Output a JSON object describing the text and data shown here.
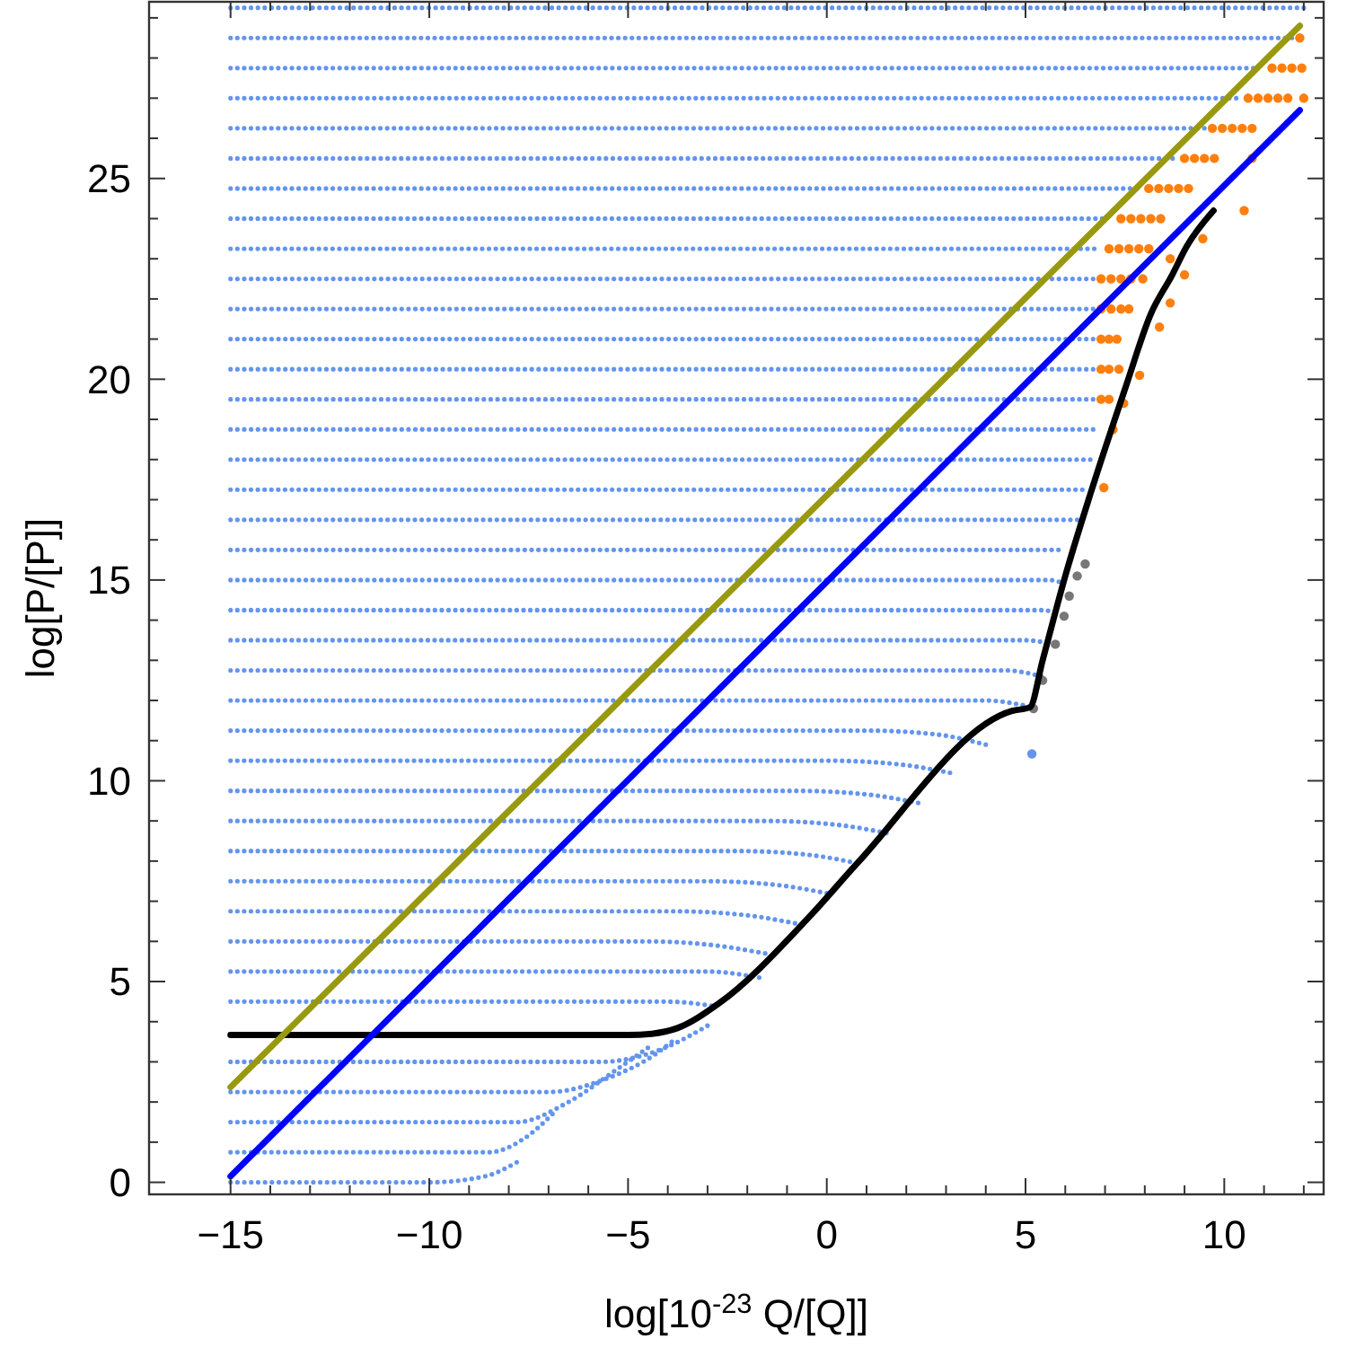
{
  "chart_data": {
    "type": "scatter",
    "xlabel": "log[10$^{-23}$ Q/[Q]]",
    "ylabel": "log[P/[P]]",
    "xlim": [
      -17.05,
      12.5
    ],
    "ylim": [
      -0.3,
      29.4
    ],
    "xticks": [
      -15,
      {
        "value": -14,
        "label": null
      },
      {
        "value": -13,
        "label": null
      },
      {
        "value": -12,
        "label": null
      },
      {
        "value": -11,
        "label": null
      },
      -10,
      {
        "value": -9,
        "label": null
      },
      {
        "value": -8,
        "label": null
      },
      {
        "value": -7,
        "label": null
      },
      {
        "value": -6,
        "label": null
      },
      -5,
      {
        "value": -4,
        "label": null
      },
      {
        "value": -3,
        "label": null
      },
      {
        "value": -2,
        "label": null
      },
      {
        "value": -1,
        "label": null
      },
      0,
      {
        "value": 1,
        "label": null
      },
      {
        "value": 2,
        "label": null
      },
      {
        "value": 3,
        "label": null
      },
      {
        "value": 4,
        "label": null
      },
      5,
      {
        "value": 6,
        "label": null
      },
      {
        "value": 7,
        "label": null
      },
      {
        "value": 8,
        "label": null
      },
      {
        "value": 9,
        "label": null
      },
      10,
      {
        "value": 11,
        "label": null
      },
      {
        "value": 12,
        "label": null
      }
    ],
    "yticks": [
      0,
      {
        "value": 1,
        "label": null
      },
      {
        "value": 2,
        "label": null
      },
      {
        "value": 3,
        "label": null
      },
      {
        "value": 4,
        "label": null
      },
      5,
      {
        "value": 6,
        "label": null
      },
      {
        "value": 7,
        "label": null
      },
      {
        "value": 8,
        "label": null
      },
      {
        "value": 9,
        "label": null
      },
      10,
      {
        "value": 11,
        "label": null
      },
      {
        "value": 12,
        "label": null
      },
      {
        "value": 13,
        "label": null
      },
      {
        "value": 14,
        "label": null
      },
      15,
      {
        "value": 16,
        "label": null
      },
      {
        "value": 17,
        "label": null
      },
      {
        "value": 18,
        "label": null
      },
      {
        "value": 19,
        "label": null
      },
      20,
      {
        "value": 21,
        "label": null
      },
      {
        "value": 22,
        "label": null
      },
      {
        "value": 23,
        "label": null
      },
      {
        "value": 24,
        "label": null
      },
      25,
      {
        "value": 26,
        "label": null
      },
      {
        "value": 27,
        "label": null
      },
      {
        "value": 28,
        "label": null
      },
      {
        "value": 29,
        "label": null
      }
    ],
    "series": [
      {
        "type": "line",
        "color": "#6495ed",
        "line_style": "dotted",
        "x": [
          -15,
          -10,
          -8.6,
          -7.8
        ],
        "values": [
          0,
          0,
          0.15,
          0.5
        ]
      },
      {
        "type": "line",
        "color": "#6495ed",
        "line_style": "dotted",
        "x": [
          -15,
          -8.5,
          -7.6,
          -6.9
        ],
        "values": [
          0.75,
          0.75,
          1.1,
          1.7
        ]
      },
      {
        "type": "line",
        "color": "#6495ed",
        "line_style": "dotted",
        "x": [
          -15,
          -7.8,
          -6.5,
          -5.3,
          -4.5
        ],
        "values": [
          1.5,
          1.5,
          2.0,
          2.8,
          3.35
        ]
      },
      {
        "type": "line",
        "color": "#6495ed",
        "line_style": "dotted",
        "x": [
          -15,
          -7.0,
          -5.5,
          -4.3,
          -3.9
        ],
        "values": [
          2.25,
          2.25,
          2.6,
          3.2,
          3.5
        ]
      },
      {
        "type": "line",
        "color": "#6495ed",
        "line_style": "dotted",
        "x": [
          -15,
          -5.7,
          -4.2,
          -3.0
        ],
        "values": [
          3,
          3,
          3.3,
          3.9
        ]
      },
      {
        "type": "line",
        "color": "#6495ed",
        "line_style": "dotted",
        "x": [
          -15,
          -4,
          -2.9
        ],
        "values": [
          4.5,
          4.5,
          4.4
        ]
      },
      {
        "type": "line",
        "color": "#6495ed",
        "line_style": "dotted",
        "x": [
          -15,
          -3,
          -1.7
        ],
        "values": [
          5.25,
          5.25,
          5.1
        ]
      },
      {
        "type": "line",
        "color": "#6495ed",
        "line_style": "dotted",
        "x": [
          -15,
          -4.5,
          -2.8,
          -1.55
        ],
        "values": [
          6,
          6,
          5.9,
          5.7
        ]
      },
      {
        "type": "line",
        "color": "#6495ed",
        "line_style": "dotted",
        "x": [
          -15,
          -3.8,
          -2.0,
          -0.8
        ],
        "values": [
          6.75,
          6.75,
          6.65,
          6.45
        ]
      },
      {
        "type": "line",
        "color": "#6495ed",
        "line_style": "dotted",
        "x": [
          -15,
          -3.0,
          -1.2,
          0
        ],
        "values": [
          7.5,
          7.5,
          7.4,
          7.2
        ]
      },
      {
        "type": "line",
        "color": "#6495ed",
        "line_style": "dotted",
        "x": [
          -15,
          -2.2,
          -0.4,
          0.75
        ],
        "values": [
          8.25,
          8.25,
          8.15,
          7.95
        ]
      },
      {
        "type": "line",
        "color": "#6495ed",
        "line_style": "dotted",
        "x": [
          -15,
          -1.5,
          0.3,
          1.5
        ],
        "values": [
          9,
          9,
          8.9,
          8.7
        ]
      },
      {
        "type": "line",
        "color": "#6495ed",
        "line_style": "dotted",
        "x": [
          -15,
          -0.7,
          1.1,
          2.3
        ],
        "values": [
          9.75,
          9.75,
          9.65,
          9.45
        ]
      },
      {
        "type": "line",
        "color": "#6495ed",
        "line_style": "dotted",
        "x": [
          -15,
          0.1,
          1.9,
          3.1
        ],
        "values": [
          10.5,
          10.5,
          10.4,
          10.2
        ]
      },
      {
        "type": "line",
        "color": "#6495ed",
        "line_style": "dotted",
        "x": [
          -15,
          1.0,
          2.8,
          4.0
        ],
        "values": [
          11.25,
          11.25,
          11.15,
          10.9
        ]
      },
      {
        "type": "line",
        "color": "#6495ed",
        "line_style": "dotted",
        "x": [
          -15,
          4.0,
          5.1
        ],
        "values": [
          12,
          12,
          11.85
        ]
      },
      {
        "type": "line",
        "color": "#6495ed",
        "line_style": "dotted",
        "x": [
          -15,
          4.5,
          5.4
        ],
        "values": [
          12.75,
          12.75,
          12.6
        ]
      },
      {
        "type": "line",
        "color": "#6495ed",
        "line_style": "dotted",
        "x": [
          -15,
          5.0,
          5.7
        ],
        "values": [
          13.5,
          13.5,
          13.4
        ]
      },
      {
        "type": "line",
        "color": "#6495ed",
        "line_style": "dotted",
        "x": [
          -15,
          5.4,
          5.9
        ],
        "values": [
          14.25,
          14.25,
          14.15
        ]
      },
      {
        "type": "line",
        "color": "#6495ed",
        "line_style": "dotted",
        "x": [
          -15,
          5.6,
          6.0
        ],
        "values": [
          15,
          15,
          14.9
        ]
      },
      {
        "type": "line",
        "color": "#6495ed",
        "line_style": "dotted",
        "x": [
          -15,
          6.0
        ],
        "values": [
          15.75,
          15.75
        ]
      },
      {
        "type": "line",
        "color": "#6495ed",
        "line_style": "dotted",
        "x": [
          -15,
          6.3
        ],
        "values": [
          16.5,
          16.5
        ]
      },
      {
        "type": "line",
        "color": "#6495ed",
        "line_style": "dotted",
        "x": [
          -15,
          6.6
        ],
        "values": [
          17.25,
          17.25
        ]
      },
      {
        "type": "line",
        "color": "#6495ed",
        "line_style": "dotted",
        "x": [
          -15,
          6.8
        ],
        "values": [
          18,
          18
        ]
      },
      {
        "type": "line",
        "color": "#6495ed",
        "line_style": "dotted",
        "x": [
          -15,
          6.7
        ],
        "values": [
          18.75,
          18.75
        ]
      },
      {
        "type": "line",
        "color": "#6495ed",
        "line_style": "dotted",
        "x": [
          -15,
          6.7
        ],
        "values": [
          19.5,
          19.5
        ]
      },
      {
        "type": "line",
        "color": "#6495ed",
        "line_style": "dotted",
        "x": [
          -15,
          6.7
        ],
        "values": [
          20.25,
          20.25
        ]
      },
      {
        "type": "line",
        "color": "#6495ed",
        "line_style": "dotted",
        "x": [
          -15,
          6.7
        ],
        "values": [
          21,
          21
        ]
      },
      {
        "type": "line",
        "color": "#6495ed",
        "line_style": "dotted",
        "x": [
          -15,
          6.7
        ],
        "values": [
          21.75,
          21.75
        ]
      },
      {
        "type": "line",
        "color": "#6495ed",
        "line_style": "dotted",
        "x": [
          -15,
          6.7
        ],
        "values": [
          22.5,
          22.5
        ]
      },
      {
        "type": "line",
        "color": "#6495ed",
        "line_style": "dotted",
        "x": [
          -15,
          6.9
        ],
        "values": [
          23.25,
          23.25
        ]
      },
      {
        "type": "line",
        "color": "#6495ed",
        "line_style": "dotted",
        "x": [
          -15,
          7.1
        ],
        "values": [
          24,
          24
        ]
      },
      {
        "type": "line",
        "color": "#6495ed",
        "line_style": "dotted",
        "x": [
          -15,
          7.8
        ],
        "values": [
          24.75,
          24.75
        ]
      },
      {
        "type": "line",
        "color": "#6495ed",
        "line_style": "dotted",
        "x": [
          -15,
          8.7
        ],
        "values": [
          25.5,
          25.5
        ]
      },
      {
        "type": "line",
        "color": "#6495ed",
        "line_style": "dotted",
        "x": [
          -15,
          9.5
        ],
        "values": [
          26.25,
          26.25
        ]
      },
      {
        "type": "line",
        "color": "#6495ed",
        "line_style": "dotted",
        "x": [
          -15,
          10.3
        ],
        "values": [
          27,
          27
        ]
      },
      {
        "type": "line",
        "color": "#6495ed",
        "line_style": "dotted",
        "x": [
          -15,
          10.9
        ],
        "values": [
          27.75,
          27.75
        ]
      },
      {
        "type": "line",
        "color": "#6495ed",
        "line_style": "dotted",
        "x": [
          -15,
          11.7
        ],
        "values": [
          28.5,
          28.5
        ]
      },
      {
        "type": "line",
        "color": "#6495ed",
        "line_style": "dotted",
        "x": [
          -15,
          12.0
        ],
        "values": [
          29.25,
          29.25
        ]
      },
      {
        "type": "scatter",
        "color": "#6495ed",
        "marker": "circle",
        "x": [
          5.16
        ],
        "values": [
          10.67
        ]
      },
      {
        "type": "scatter",
        "color": "#ff7f0e",
        "marker": "circle",
        "x": [
          11.9,
          11.2,
          11.45,
          11.7,
          11.95,
          10.6,
          10.85,
          11.1,
          11.35,
          11.6,
          12.0,
          9.7,
          9.95,
          10.2,
          10.45,
          10.7,
          9.0,
          9.25,
          9.5,
          9.75,
          10.7,
          8.1,
          8.35,
          8.6,
          8.85,
          9.1,
          10.5,
          7.4,
          7.65,
          7.9,
          8.15,
          8.4,
          9.46,
          7.1,
          7.35,
          7.6,
          7.85,
          8.1,
          8.64,
          6.9,
          7.15,
          7.4,
          7.65,
          7.95,
          9.0,
          6.9,
          7.15,
          7.4,
          7.6,
          8.64,
          6.9,
          7.1,
          7.3,
          8.37,
          6.9,
          7.1,
          7.35,
          7.87,
          6.9,
          7.1,
          7.47,
          7.2,
          6.97
        ],
        "values": [
          28.5,
          27.75,
          27.75,
          27.75,
          27.75,
          27,
          27,
          27,
          27,
          27,
          27,
          26.25,
          26.25,
          26.25,
          26.25,
          26.25,
          25.5,
          25.5,
          25.5,
          25.5,
          25.5,
          24.75,
          24.75,
          24.75,
          24.75,
          24.75,
          24.2,
          24,
          24,
          24,
          24,
          24,
          23.5,
          23.25,
          23.25,
          23.25,
          23.25,
          23.25,
          23.0,
          22.5,
          22.5,
          22.5,
          22.5,
          22.5,
          22.6,
          21.75,
          21.75,
          21.75,
          21.75,
          21.9,
          21,
          21,
          21,
          21.3,
          20.25,
          20.25,
          20.25,
          20.1,
          19.5,
          19.5,
          19.4,
          18.75,
          17.3
        ]
      },
      {
        "type": "scatter",
        "color": "#777777",
        "marker": "circle",
        "x": [
          6.5,
          6.3,
          6.1,
          5.97,
          5.75,
          5.43,
          5.2
        ],
        "values": [
          15.4,
          15.1,
          14.6,
          14.1,
          13.4,
          12.5,
          11.8
        ]
      },
      {
        "type": "line",
        "color": "#000000",
        "line_style": "solid",
        "x": [
          -15,
          -5,
          -4.4,
          -3.76,
          -2.71,
          -0.45,
          0.77,
          4.66,
          5.11,
          5.43,
          6.0,
          6.65,
          7.55,
          8.14,
          8.69,
          9.05,
          9.73
        ],
        "values": [
          3.67,
          3.67,
          3.7,
          3.84,
          4.46,
          6.6,
          7.95,
          11.74,
          11.83,
          13.0,
          15.1,
          17.2,
          19.9,
          21.6,
          22.6,
          23.3,
          24.2
        ]
      },
      {
        "type": "line",
        "color": "#0000ff",
        "line_style": "solid",
        "x": [
          -15,
          11.9
        ],
        "values": [
          0.15,
          26.7
        ]
      },
      {
        "type": "line",
        "color": "#999910",
        "line_style": "solid",
        "x": [
          -15,
          11.9
        ],
        "values": [
          2.37,
          28.8
        ]
      }
    ]
  }
}
